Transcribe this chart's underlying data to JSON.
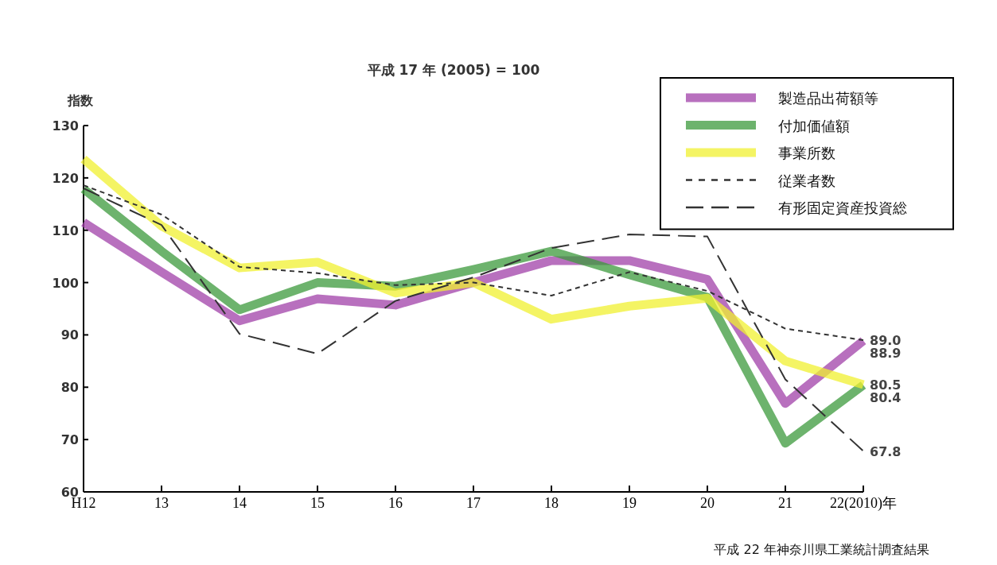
{
  "chart_data": {
    "type": "line",
    "title": "平成 17 年 (2005) = 100",
    "ylabel": "指数",
    "categories": [
      "H12",
      "13",
      "14",
      "15",
      "16",
      "17",
      "18",
      "19",
      "20",
      "21",
      "22(2010)年"
    ],
    "ylim": [
      60,
      130
    ],
    "yticks": [
      60,
      70,
      80,
      90,
      100,
      110,
      120,
      130
    ],
    "grid": false,
    "legend": "top right",
    "series": [
      {
        "name": "製造品出荷額等",
        "color": "#a040a8",
        "line_style": "solid",
        "values": [
          111.5,
          102,
          92.7,
          96.9,
          95.7,
          100,
          104.2,
          104.2,
          100.6,
          76.9,
          88.9
        ],
        "value_labels": [
          null,
          null,
          null,
          null,
          null,
          null,
          null,
          null,
          null,
          null,
          "88.9"
        ]
      },
      {
        "name": "付加価値額",
        "color": "#3c9a3c",
        "line_style": "solid",
        "values": [
          117.9,
          106,
          94.8,
          100,
          99.3,
          102.5,
          106,
          101.5,
          97.2,
          69.3,
          80.4
        ],
        "value_labels": [
          null,
          null,
          null,
          null,
          null,
          null,
          null,
          null,
          null,
          null,
          "80.4"
        ]
      },
      {
        "name": "事業所数",
        "color": "#f0f030",
        "line_style": "solid",
        "values": [
          123.6,
          110.8,
          102.8,
          103.9,
          98,
          100,
          93,
          95.5,
          97,
          85,
          80.5
        ],
        "value_labels": [
          null,
          null,
          null,
          null,
          null,
          null,
          null,
          null,
          null,
          null,
          "80.5"
        ]
      },
      {
        "name": "従業者数",
        "color": "#333333",
        "line_style": "dotted",
        "values": [
          118.6,
          113,
          103,
          101.8,
          99.5,
          100,
          97.5,
          102,
          98.4,
          91.2,
          89.0
        ],
        "value_labels": [
          null,
          null,
          null,
          null,
          null,
          null,
          null,
          null,
          null,
          null,
          "89.0"
        ]
      },
      {
        "name": "有形固定資産投資総",
        "color": "#333333",
        "line_style": "dashed",
        "values": [
          118,
          111,
          90.2,
          86.4,
          96.5,
          101,
          106.6,
          109.2,
          108.8,
          81.5,
          67.8
        ],
        "value_labels": [
          null,
          null,
          null,
          null,
          null,
          null,
          null,
          null,
          null,
          null,
          "67.8"
        ]
      }
    ],
    "annotations": [
      "平成 22 年神奈川県工業統計調査結果"
    ]
  }
}
